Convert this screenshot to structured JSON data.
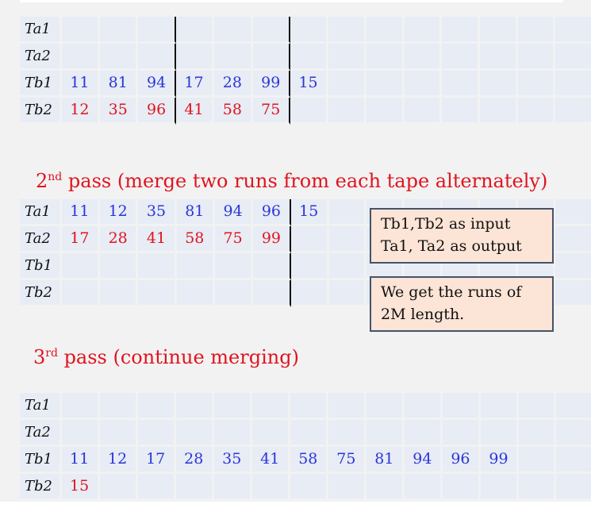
{
  "pass1_table": {
    "rows": [
      {
        "label": "Ta1",
        "color": "blue",
        "cells": [
          "",
          "",
          "",
          "",
          "",
          "",
          "",
          "",
          "",
          "",
          "",
          "",
          "",
          ""
        ],
        "seps": [
          3,
          6
        ]
      },
      {
        "label": "Ta2",
        "color": "blue",
        "cells": [
          "",
          "",
          "",
          "",
          "",
          "",
          "",
          "",
          "",
          "",
          "",
          "",
          "",
          ""
        ],
        "seps": [
          3,
          6
        ]
      },
      {
        "label": "Tb1",
        "color": "blue",
        "cells": [
          "11",
          "81",
          "94",
          "17",
          "28",
          "99",
          "15",
          "",
          "",
          "",
          "",
          "",
          "",
          ""
        ],
        "seps": [
          3,
          6
        ]
      },
      {
        "label": "Tb2",
        "color": "red",
        "cells": [
          "12",
          "35",
          "96",
          "41",
          "58",
          "75",
          "",
          "",
          "",
          "",
          "",
          "",
          "",
          ""
        ],
        "seps": [
          3,
          6
        ]
      }
    ]
  },
  "pass2": {
    "heading_prefix": "2",
    "heading_sup": "nd",
    "heading_text": " pass (merge two runs from each tape alternately)"
  },
  "pass2_table": {
    "rows": [
      {
        "label": "Ta1",
        "color": "blue",
        "cells": [
          "11",
          "12",
          "35",
          "81",
          "94",
          "96",
          "15",
          "",
          "",
          "",
          "",
          "",
          "",
          ""
        ],
        "seps": [
          6
        ]
      },
      {
        "label": "Ta2",
        "color": "red",
        "cells": [
          "17",
          "28",
          "41",
          "58",
          "75",
          "99",
          "",
          "",
          "",
          "",
          "",
          "",
          "",
          ""
        ],
        "seps": [
          6
        ]
      },
      {
        "label": "Tb1",
        "color": "blue",
        "cells": [
          "",
          "",
          "",
          "",
          "",
          "",
          "",
          "",
          "",
          "",
          "",
          "",
          "",
          ""
        ],
        "seps": [
          6
        ]
      },
      {
        "label": "Tb2",
        "color": "blue",
        "cells": [
          "",
          "",
          "",
          "",
          "",
          "",
          "",
          "",
          "",
          "",
          "",
          "",
          "",
          ""
        ],
        "seps": [
          6
        ]
      }
    ]
  },
  "notes": {
    "note1_line1": "Tb1,Tb2 as input",
    "note1_line2": "Ta1, Ta2 as output",
    "note2_line1": "We get the runs of",
    "note2_line2": "2M length."
  },
  "pass3": {
    "heading_prefix": "3",
    "heading_sup": "rd",
    "heading_text": "  pass (continue merging)"
  },
  "pass3_table": {
    "rows": [
      {
        "label": "Ta1",
        "color": "blue",
        "cells": [
          "",
          "",
          "",
          "",
          "",
          "",
          "",
          "",
          "",
          "",
          "",
          "",
          "",
          ""
        ],
        "seps": []
      },
      {
        "label": "Ta2",
        "color": "blue",
        "cells": [
          "",
          "",
          "",
          "",
          "",
          "",
          "",
          "",
          "",
          "",
          "",
          "",
          "",
          ""
        ],
        "seps": []
      },
      {
        "label": "Tb1",
        "color": "blue",
        "cells": [
          "11",
          "12",
          "17",
          "28",
          "35",
          "41",
          "58",
          "75",
          "81",
          "94",
          "96",
          "99",
          "",
          ""
        ],
        "seps": []
      },
      {
        "label": "Tb2",
        "color": "red",
        "cells": [
          "15",
          "",
          "",
          "",
          "",
          "",
          "",
          "",
          "",
          "",
          "",
          "",
          "",
          ""
        ],
        "seps": []
      }
    ]
  }
}
